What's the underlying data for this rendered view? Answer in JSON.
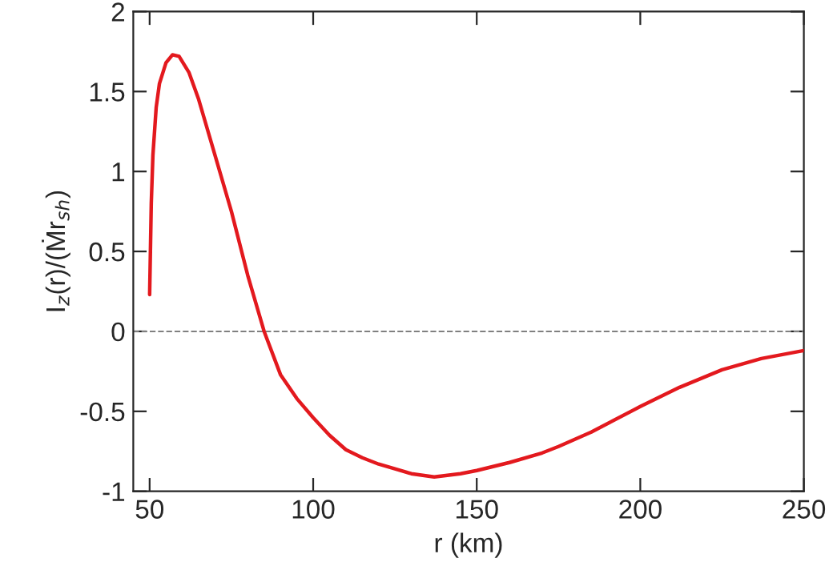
{
  "chart_data": {
    "type": "line",
    "xlabel": "r (km)",
    "ylabel": "I$_{z}$(r)/(Ṁr$_{sh}$)",
    "series": [
      {
        "color": "#e3191e",
        "x": [
          50,
          50.5,
          51,
          52,
          53,
          55,
          57,
          59,
          62,
          65,
          70,
          75,
          80,
          85,
          90,
          95,
          100,
          105,
          110,
          115,
          120,
          125,
          130,
          137,
          145,
          150,
          160,
          170,
          175,
          185,
          200,
          212,
          225,
          237,
          250
        ],
        "values": [
          0.23,
          0.8,
          1.1,
          1.4,
          1.55,
          1.68,
          1.73,
          1.72,
          1.62,
          1.45,
          1.1,
          0.75,
          0.35,
          0.0,
          -0.27,
          -0.42,
          -0.54,
          -0.65,
          -0.74,
          -0.79,
          -0.83,
          -0.86,
          -0.89,
          -0.91,
          -0.89,
          -0.87,
          -0.82,
          -0.76,
          -0.72,
          -0.63,
          -0.47,
          -0.35,
          -0.24,
          -0.17,
          -0.12
        ]
      }
    ],
    "xlim": [
      45,
      250
    ],
    "ylim": [
      -1,
      2
    ],
    "xticks": [
      50,
      100,
      150,
      200,
      250
    ],
    "yticks": [
      -1,
      -0.5,
      0,
      0.5,
      1,
      1.5,
      2
    ],
    "ref_lines": [
      {
        "axis": "y",
        "value": 0,
        "color": "#808080",
        "line_style": "dashed"
      }
    ],
    "grid": false,
    "legend": false
  }
}
